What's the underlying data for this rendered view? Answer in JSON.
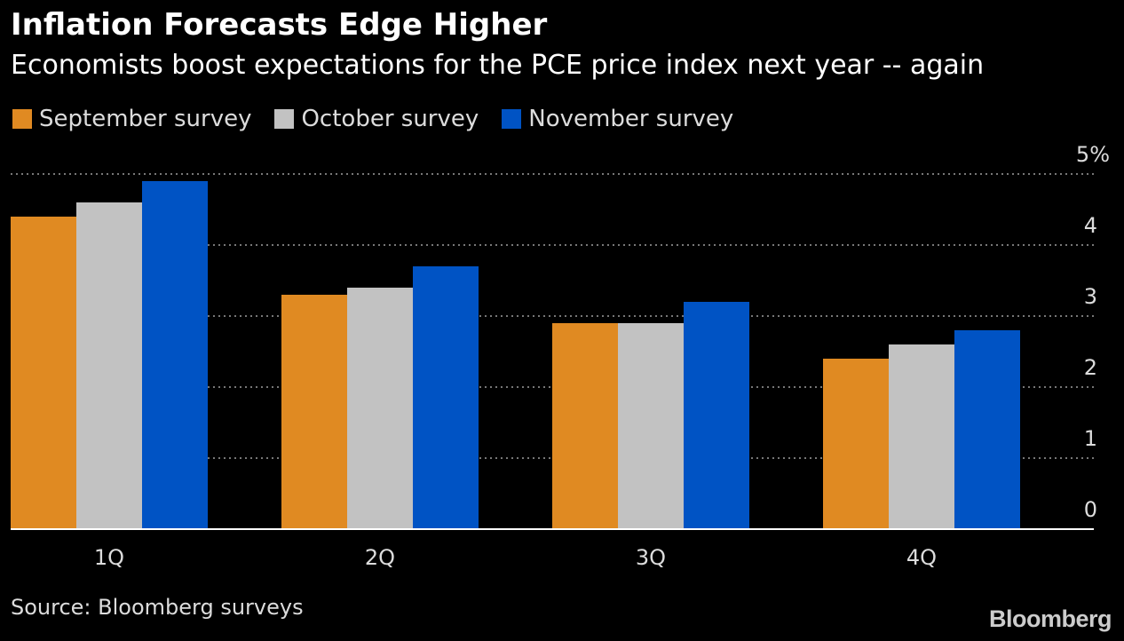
{
  "title": "Inflation Forecasts Edge Higher",
  "subtitle": "Economists boost expectations for the PCE price index next year -- again",
  "source": "Source: Bloomberg surveys",
  "brand": "Bloomberg",
  "colors": {
    "background": "#000000",
    "september": "#e08a22",
    "october": "#c2c2c2",
    "november": "#0053c4",
    "grid": "#777777",
    "axis": "#ffffff",
    "tick_text": "#dcdcdc"
  },
  "chart_data": {
    "type": "bar",
    "title": "Inflation Forecasts Edge Higher",
    "subtitle": "Economists boost expectations for the PCE price index next year -- again",
    "categories": [
      "1Q",
      "2Q",
      "3Q",
      "4Q"
    ],
    "series": [
      {
        "name": "September survey",
        "values": [
          4.4,
          3.3,
          2.9,
          2.4
        ]
      },
      {
        "name": "October survey",
        "values": [
          4.6,
          3.4,
          2.9,
          2.6
        ]
      },
      {
        "name": "November survey",
        "values": [
          4.9,
          3.7,
          3.2,
          2.8
        ]
      }
    ],
    "ylim": [
      0,
      5
    ],
    "yticks": [
      0,
      1,
      2,
      3,
      4,
      5
    ],
    "ytick_labels": [
      "0",
      "1",
      "2",
      "3",
      "4",
      "5%"
    ],
    "xlabel": "",
    "ylabel": "",
    "grid": true,
    "legend_position": "top-left",
    "y_axis_side": "right"
  }
}
